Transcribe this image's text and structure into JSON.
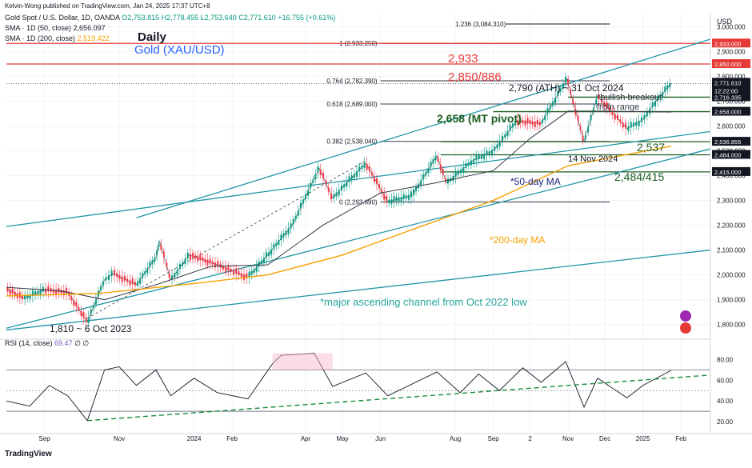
{
  "header": {
    "publisher": "Kelvin-Wong published on TradingView.com, Jan 24, 2025 17:37 UTC+8",
    "symbol": "Gold Spot / U.S. Dollar, 1D, OANDA",
    "ohlc": "O2,753.815  H2,778.455  L2,753.640  C2,771.610  +16.755 (+0.61%)",
    "sma50_label": "SMA · 1D (50, close)",
    "sma50_value": "2,656.097",
    "sma200_label": "SMA · 1D (200, close)",
    "sma200_value": "2,519.422",
    "rsi_label": "RSI (14, close)",
    "rsi_value": "69.47",
    "rsi_extra": "∅  ∅",
    "currency": "USD",
    "footer_brand": "TradingView"
  },
  "titles": {
    "timeframe": "Daily",
    "instrument": "Gold (XAU/USD)"
  },
  "colors": {
    "up_candle": "#089981",
    "down_candle": "#f23645",
    "sma50": "#363a45",
    "sma200": "#f6a000",
    "channel": "#2196a6",
    "resistance": "#e53935",
    "support": "#1b5e20",
    "annotation_green": "#1b5e20",
    "annotation_red": "#e53935",
    "annotation_teal": "#26a69a",
    "annotation_blue": "#1a237e"
  },
  "chart_data": {
    "type": "candlestick",
    "instrument": "XAU/USD",
    "timeframe": "1D",
    "ylim": [
      1760,
      3050
    ],
    "yticks": [
      1800,
      1900,
      2000,
      2100,
      2200,
      2300,
      2400,
      2500,
      2600,
      2700,
      2800,
      2900,
      3000
    ],
    "ytick_labels": [
      "1,800.000",
      "1,900.000",
      "2,000.000",
      "2,100.000",
      "2,200.000",
      "2,300.000",
      "2,400.000",
      "2,500.000",
      "2,600.000",
      "2,700.000",
      "2,800.000",
      "2,900.000",
      "3,000.000"
    ],
    "xticks": [
      {
        "date": "2023-09-01",
        "label": "Sep"
      },
      {
        "date": "2023-11-01",
        "label": "Nov"
      },
      {
        "date": "2024-01-01",
        "label": "2024"
      },
      {
        "date": "2024-02-01",
        "label": "Feb"
      },
      {
        "date": "2024-04-01",
        "label": "Apr"
      },
      {
        "date": "2024-05-01",
        "label": "May"
      },
      {
        "date": "2024-06-01",
        "label": "Jun"
      },
      {
        "date": "2024-08-01",
        "label": "Aug"
      },
      {
        "date": "2024-09-01",
        "label": "Sep"
      },
      {
        "date": "2024-10-01",
        "label": "2"
      },
      {
        "date": "2024-11-01",
        "label": "Nov"
      },
      {
        "date": "2024-12-01",
        "label": "Dec"
      },
      {
        "date": "2025-01-01",
        "label": "2025"
      },
      {
        "date": "2025-02-01",
        "label": "Feb"
      }
    ],
    "x_range": [
      "2023-08-01",
      "2025-02-25"
    ],
    "last_price": {
      "value": 2771.61,
      "label": "2,771.610",
      "countdown": "12:22:00"
    },
    "price_path": [
      [
        "2023-08-01",
        1945
      ],
      [
        "2023-08-15",
        1905
      ],
      [
        "2023-09-01",
        1940
      ],
      [
        "2023-09-20",
        1930
      ],
      [
        "2023-10-06",
        1810
      ],
      [
        "2023-10-20",
        1980
      ],
      [
        "2023-10-27",
        2005
      ],
      [
        "2023-11-15",
        1960
      ],
      [
        "2023-12-01",
        2070
      ],
      [
        "2023-12-04",
        2135
      ],
      [
        "2023-12-13",
        1980
      ],
      [
        "2023-12-28",
        2080
      ],
      [
        "2024-01-15",
        2050
      ],
      [
        "2024-02-14",
        1990
      ],
      [
        "2024-03-01",
        2080
      ],
      [
        "2024-03-21",
        2200
      ],
      [
        "2024-04-12",
        2430
      ],
      [
        "2024-04-23",
        2310
      ],
      [
        "2024-05-20",
        2450
      ],
      [
        "2024-06-07",
        2295
      ],
      [
        "2024-06-27",
        2320
      ],
      [
        "2024-07-17",
        2480
      ],
      [
        "2024-07-25",
        2370
      ],
      [
        "2024-08-15",
        2460
      ],
      [
        "2024-09-01",
        2500
      ],
      [
        "2024-09-20",
        2620
      ],
      [
        "2024-10-10",
        2610
      ],
      [
        "2024-10-31",
        2790
      ],
      [
        "2024-11-14",
        2537
      ],
      [
        "2024-11-25",
        2720
      ],
      [
        "2024-12-19",
        2590
      ],
      [
        "2025-01-01",
        2625
      ],
      [
        "2025-01-10",
        2690
      ],
      [
        "2025-01-24",
        2771.61
      ]
    ],
    "sma50_path": [
      [
        "2023-08-01",
        1950
      ],
      [
        "2023-09-15",
        1935
      ],
      [
        "2023-10-20",
        1900
      ],
      [
        "2023-12-01",
        1960
      ],
      [
        "2024-01-15",
        2035
      ],
      [
        "2024-03-01",
        2040
      ],
      [
        "2024-04-15",
        2200
      ],
      [
        "2024-06-01",
        2330
      ],
      [
        "2024-07-15",
        2370
      ],
      [
        "2024-09-01",
        2420
      ],
      [
        "2024-10-01",
        2550
      ],
      [
        "2024-11-01",
        2660
      ],
      [
        "2024-12-01",
        2660
      ],
      [
        "2025-01-24",
        2656
      ]
    ],
    "sma200_path": [
      [
        "2023-08-01",
        1915
      ],
      [
        "2023-10-15",
        1925
      ],
      [
        "2024-01-01",
        1965
      ],
      [
        "2024-03-01",
        2000
      ],
      [
        "2024-05-01",
        2080
      ],
      [
        "2024-07-01",
        2190
      ],
      [
        "2024-09-01",
        2300
      ],
      [
        "2024-11-01",
        2440
      ],
      [
        "2025-01-24",
        2519
      ]
    ],
    "fibonacci": {
      "anchor_start": "2024-04-12",
      "anchor_end": "2025-01-20",
      "levels": [
        {
          "ratio": "0",
          "value": 2293.69,
          "label": "0 (2,293.690)"
        },
        {
          "ratio": "0.382",
          "value": 2538.04,
          "label": "0.382 (2,538.040)"
        },
        {
          "ratio": "0.618",
          "value": 2689.0,
          "label": "0.618 (2,689.000)"
        },
        {
          "ratio": "0.764",
          "value": 2782.39,
          "label": "0.764 (2,782.390)"
        },
        {
          "ratio": "1",
          "value": 2933.25,
          "label": "1 (2,933.250)"
        },
        {
          "ratio": "1.236",
          "value": 3084.31,
          "label": "1.236 (3,084.310)"
        }
      ]
    },
    "horizontal_levels": [
      {
        "value": 2933,
        "axis_label": "2,933.000",
        "role": "resistance"
      },
      {
        "value": 2850,
        "axis_label": "2,850.000",
        "role": "resistance"
      },
      {
        "value": 2716.335,
        "axis_label": "2,716.335",
        "role": "support"
      },
      {
        "value": 2658,
        "axis_label": "2,658.000",
        "role": "support"
      },
      {
        "value": 2536.855,
        "axis_label": "2,536.855",
        "role": "support"
      },
      {
        "value": 2484,
        "axis_label": "2,484.000",
        "role": "support"
      },
      {
        "value": 2415,
        "axis_label": "2,415.000",
        "role": "support"
      }
    ],
    "annotations": {
      "r1": "2,933",
      "r2": "2,850/886",
      "ath": "2,790 (ATH) ~ 31 Oct 2024",
      "breakout": "*bullish breakout",
      "breakout2": "from range",
      "pivot": "2,658 (MT pivot)",
      "low2537": "2,537",
      "nov14": "14 Nov 2024",
      "sma50note": "*50-day MA",
      "sup2484": "2,484/415",
      "sma200note": "*200-day MA",
      "channelnote": "*major ascending channel from Oct 2022 low",
      "low1810": "1,810 ~ 6 Oct 2023"
    },
    "rsi": {
      "ylim": [
        10,
        95
      ],
      "yticks": [
        20,
        40,
        60,
        80
      ],
      "ytick_labels": [
        "20.00",
        "40.00",
        "60.00",
        "80.00"
      ],
      "levels": [
        30,
        50,
        70
      ],
      "path": [
        [
          "2023-08-01",
          40
        ],
        [
          "2023-08-20",
          35
        ],
        [
          "2023-09-05",
          55
        ],
        [
          "2023-09-20",
          45
        ],
        [
          "2023-10-06",
          21
        ],
        [
          "2023-10-20",
          70
        ],
        [
          "2023-11-01",
          73
        ],
        [
          "2023-11-15",
          55
        ],
        [
          "2023-12-01",
          70
        ],
        [
          "2023-12-13",
          45
        ],
        [
          "2024-01-01",
          62
        ],
        [
          "2024-01-20",
          48
        ],
        [
          "2024-02-14",
          42
        ],
        [
          "2024-03-05",
          76
        ],
        [
          "2024-03-12",
          84
        ],
        [
          "2024-04-08",
          86
        ],
        [
          "2024-04-23",
          54
        ],
        [
          "2024-05-20",
          67
        ],
        [
          "2024-06-07",
          45
        ],
        [
          "2024-07-17",
          68
        ],
        [
          "2024-08-05",
          48
        ],
        [
          "2024-08-20",
          66
        ],
        [
          "2024-09-06",
          50
        ],
        [
          "2024-09-25",
          72
        ],
        [
          "2024-10-10",
          58
        ],
        [
          "2024-10-30",
          78
        ],
        [
          "2024-11-14",
          34
        ],
        [
          "2024-11-25",
          62
        ],
        [
          "2024-12-19",
          43
        ],
        [
          "2025-01-01",
          55
        ],
        [
          "2025-01-24",
          69.47
        ]
      ]
    }
  }
}
